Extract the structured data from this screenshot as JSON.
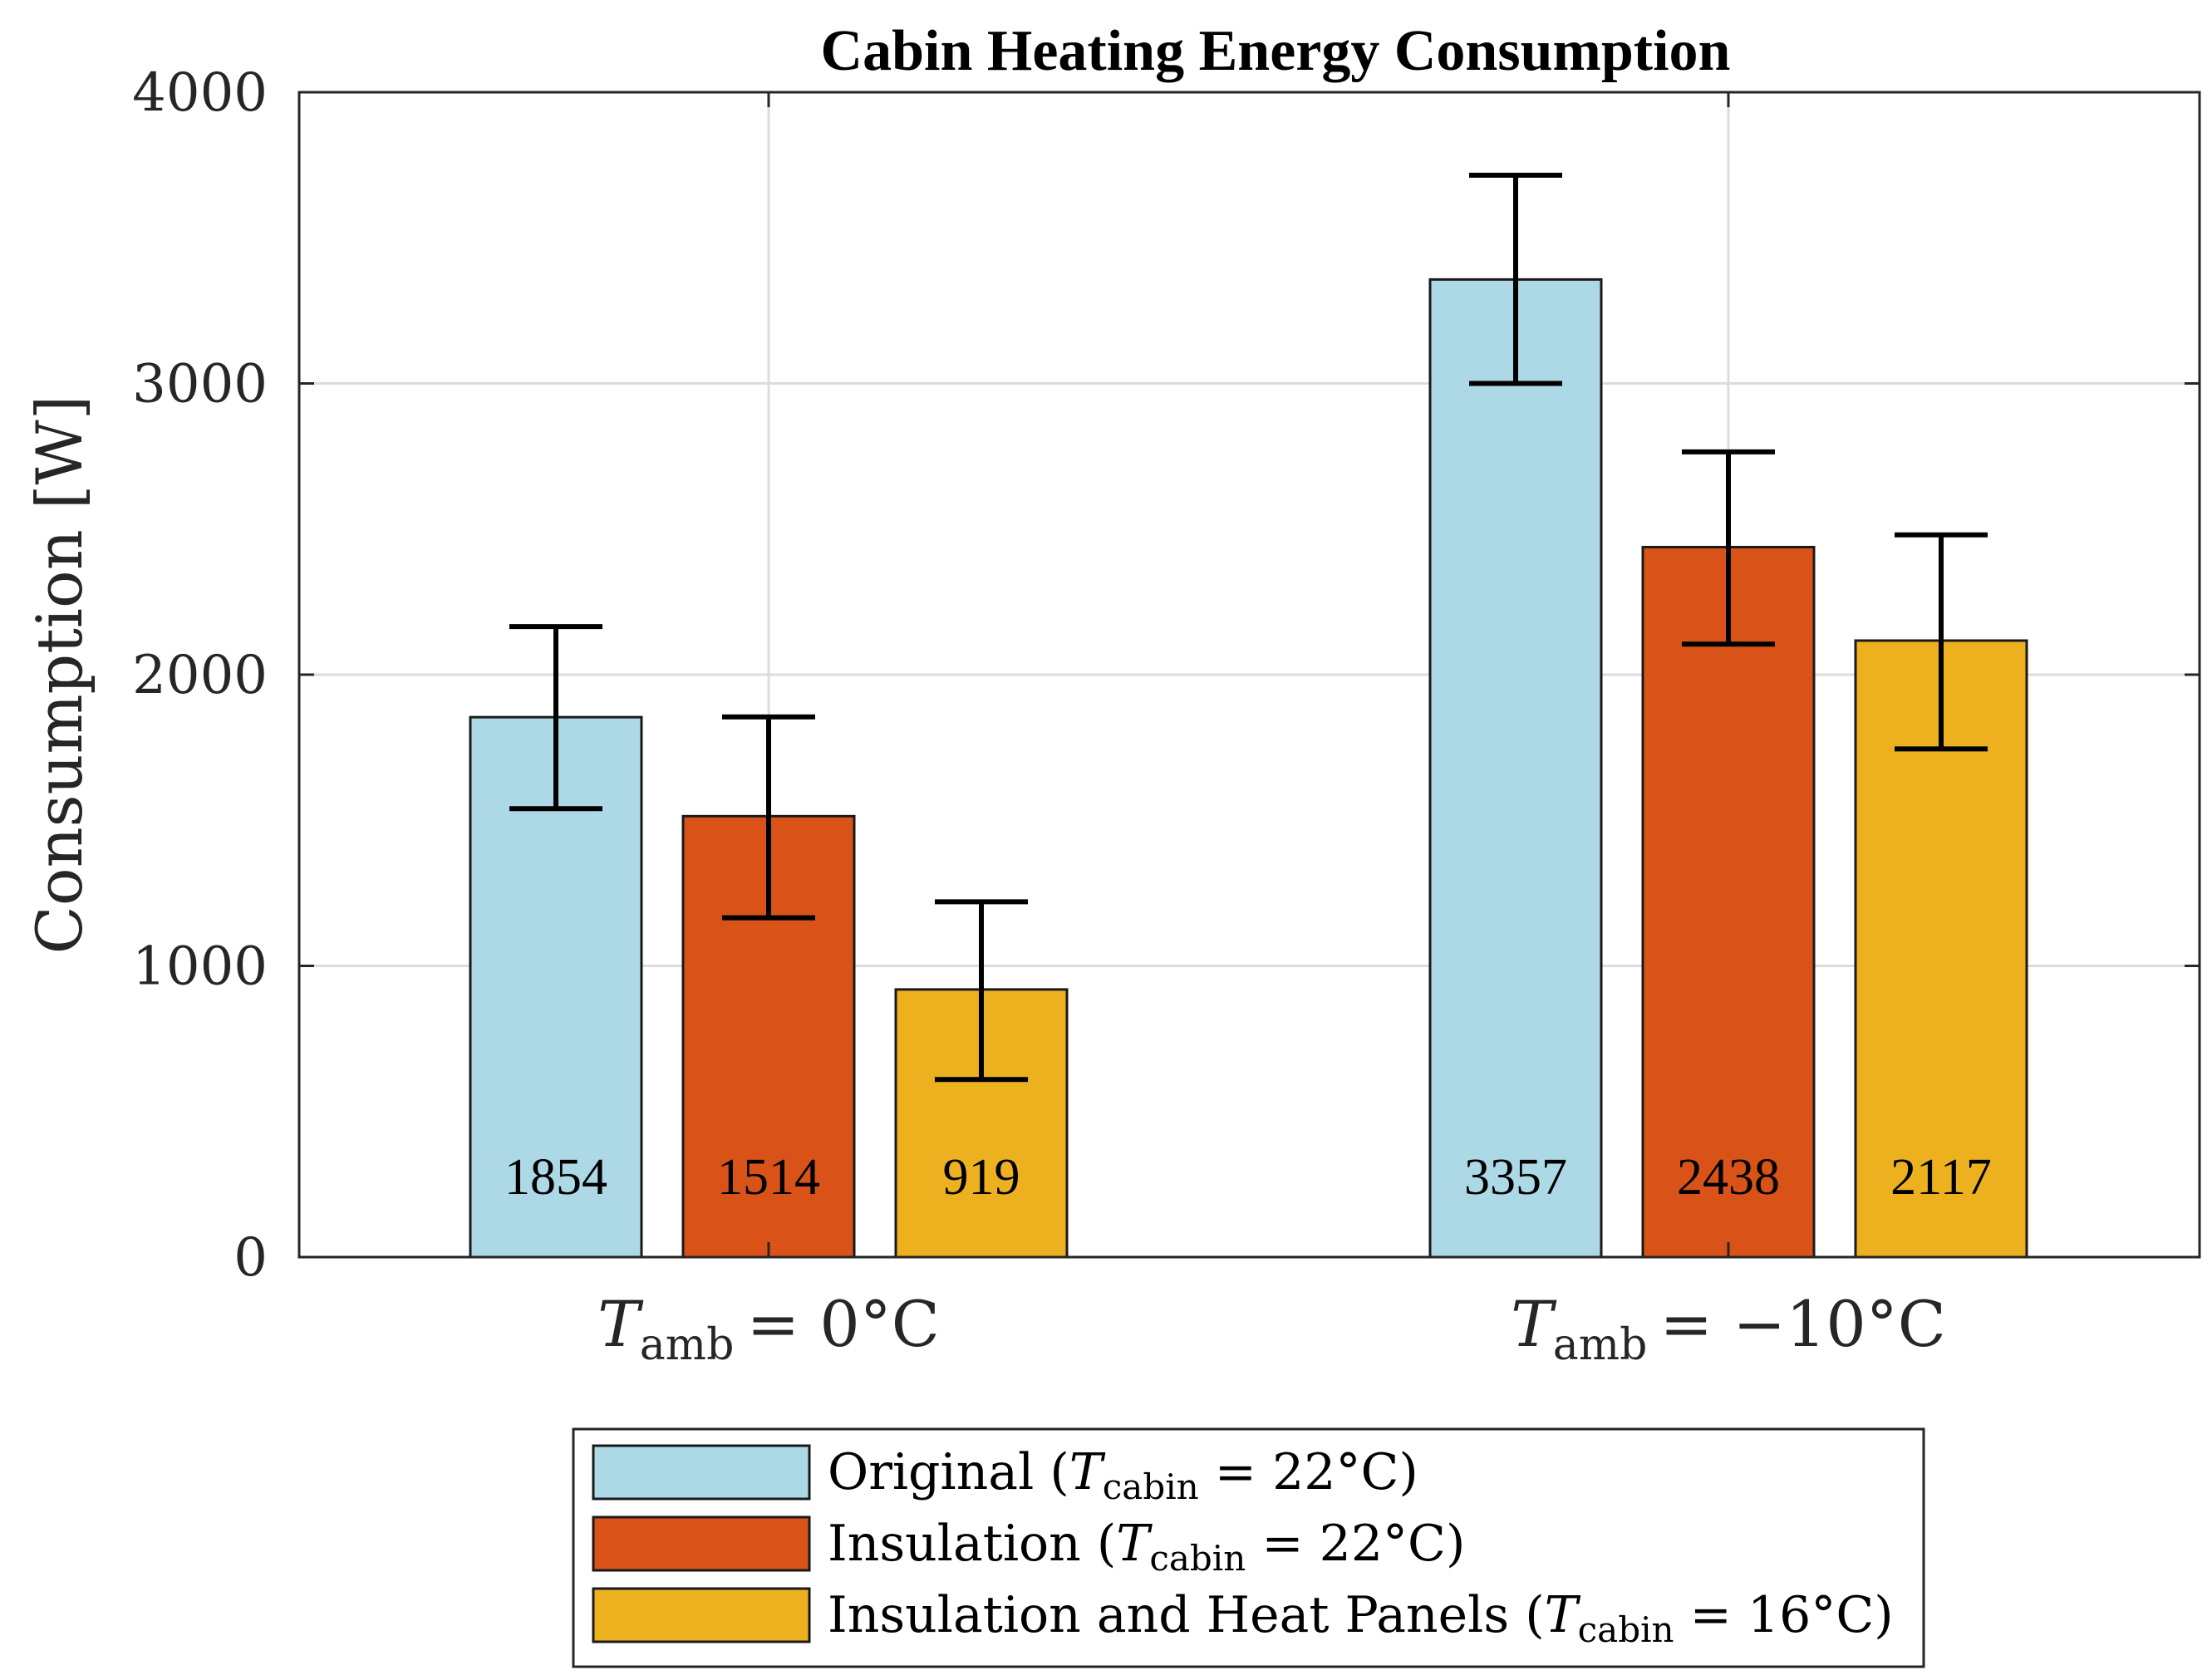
{
  "chart_data": {
    "type": "bar",
    "title": "Cabin Heating Energy Consumption",
    "xlabel": "",
    "ylabel": "Consumption [W]",
    "ylim": [
      0,
      4000
    ],
    "yticks": [
      0,
      1000,
      2000,
      3000,
      4000
    ],
    "grid": true,
    "legend_position": "bottom-outside",
    "categories": [
      {
        "symbol": "T",
        "subscript": "amb",
        "value_text": "= 0°C"
      },
      {
        "symbol": "T",
        "subscript": "amb",
        "value_text": "= −10°C"
      }
    ],
    "series": [
      {
        "name": "Original",
        "legend_prefix": "Original (",
        "legend_symbol": "T",
        "legend_subscript": "cabin",
        "legend_suffix": " = 22°C)",
        "color": "#ADD8E6",
        "values": [
          1854,
          3357
        ],
        "error_low": [
          1540,
          3000
        ],
        "error_high": [
          2165,
          3715
        ]
      },
      {
        "name": "Insulation",
        "legend_prefix": "Insulation (",
        "legend_symbol": "T",
        "legend_subscript": "cabin",
        "legend_suffix": " = 22°C)",
        "color": "#D95319",
        "values": [
          1514,
          2438
        ],
        "error_low": [
          1165,
          2105
        ],
        "error_high": [
          1855,
          2765
        ]
      },
      {
        "name": "Insulation and Heat Panels",
        "legend_prefix": "Insulation and Heat Panels (",
        "legend_symbol": "T",
        "legend_subscript": "cabin",
        "legend_suffix": " = 16°C)",
        "color": "#EDB120",
        "values": [
          919,
          2117
        ],
        "error_low": [
          610,
          1745
        ],
        "error_high": [
          1220,
          2480
        ]
      }
    ]
  }
}
